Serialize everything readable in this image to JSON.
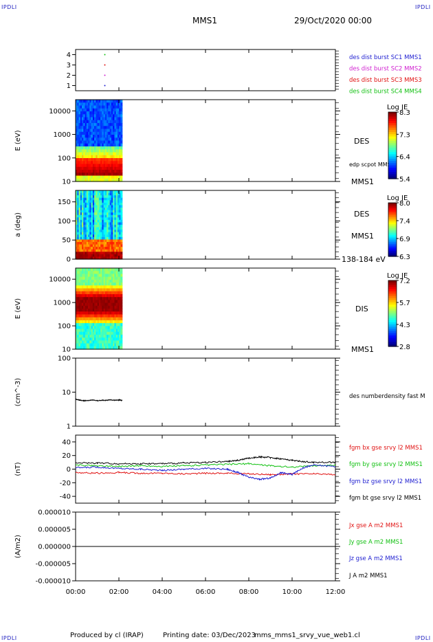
{
  "header": {
    "corner_label": "IPDLI",
    "spacecraft": "MMS1",
    "datetime": "29/Oct/2020 00:00"
  },
  "footer": {
    "producer": "Produced by cl (IRAP)",
    "printing_date": "Printing date: 03/Dec/2023",
    "filename": "mms_mms1_srvy_vue_web1.cl"
  },
  "time_axis": {
    "range_hours": [
      0,
      12
    ],
    "tick_labels": [
      "00:00",
      "02:00",
      "04:00",
      "06:00",
      "08:00",
      "10:00",
      "12:00"
    ]
  },
  "chart_data": [
    {
      "type": "scatter",
      "id": "availability",
      "ylim": [
        0.5,
        4.5
      ],
      "y_ticks": [
        "1",
        "2",
        "3",
        "4"
      ],
      "data_end_hours": 1.35,
      "series": [
        {
          "name": "des dist burst SC1 MMS1",
          "color": "#1c1cd0",
          "y": 1
        },
        {
          "name": "des dist burst SC2 MMS2",
          "color": "#d020d0",
          "y": 2
        },
        {
          "name": "des dist burst SC3 MMS3",
          "color": "#e01010",
          "y": 3
        },
        {
          "name": "des dist burst SC4 MMS4",
          "color": "#10c010",
          "y": 4
        }
      ]
    },
    {
      "type": "heatmap",
      "id": "des-energy",
      "ylabel": "E (eV)",
      "scale": "log",
      "ylim": [
        10,
        30000
      ],
      "y_ticks": [
        "10",
        "100",
        "1000",
        "10000"
      ],
      "data_hours": [
        0,
        2.15
      ],
      "right_label": "DES",
      "right_sublabel": "edp scpot MMS1",
      "right_bottom": "MMS1",
      "colorbar": {
        "title": "Log JE",
        "ticks": [
          "8.3",
          "7.3",
          "6.4",
          "5.4"
        ]
      }
    },
    {
      "type": "heatmap",
      "id": "des-pitch",
      "ylabel": "a (deg)",
      "ylim": [
        0,
        180
      ],
      "y_ticks": [
        "0",
        "50",
        "100",
        "150"
      ],
      "data_hours": [
        0,
        2.15
      ],
      "right_label": "DES",
      "right_sublabel": "MMS1",
      "right_bottom": "138-184 eV",
      "colorbar": {
        "title": "Log JE",
        "ticks": [
          "8.0",
          "7.4",
          "6.9",
          "6.3"
        ]
      }
    },
    {
      "type": "heatmap",
      "id": "dis-energy",
      "ylabel": "E (eV)",
      "scale": "log",
      "ylim": [
        10,
        30000
      ],
      "y_ticks": [
        "10",
        "100",
        "1000",
        "10000"
      ],
      "data_hours": [
        0,
        2.15
      ],
      "right_label": "DIS",
      "right_bottom": "MMS1",
      "colorbar": {
        "title": "Log JE",
        "ticks": [
          "7.2",
          "5.7",
          "4.3",
          "2.8"
        ]
      }
    },
    {
      "type": "line",
      "id": "density",
      "ylabel": "(cm^-3)",
      "scale": "log",
      "ylim": [
        1,
        100
      ],
      "y_ticks": [
        "1",
        "10",
        "100"
      ],
      "series": [
        {
          "name": "des numberdensity fast M",
          "color": "#000000",
          "x": [
            0,
            0.2,
            0.4,
            0.6,
            0.8,
            1.0,
            1.2,
            1.4,
            1.6,
            1.8,
            2.0,
            2.15
          ],
          "y": [
            6.2,
            5.8,
            5.6,
            5.7,
            5.9,
            5.6,
            5.8,
            5.7,
            6.0,
            5.8,
            5.9,
            5.7
          ]
        }
      ]
    },
    {
      "type": "line",
      "id": "fgm",
      "ylabel": "(nT)",
      "ylim": [
        -50,
        50
      ],
      "y_ticks": [
        "-40",
        "-20",
        "0",
        "20",
        "40"
      ],
      "series": [
        {
          "name": "fgm bx gse srvy l2 MMS1",
          "color": "#e01010",
          "x": [
            0,
            1,
            2,
            3,
            4,
            5,
            6,
            7,
            8,
            9,
            10,
            11,
            12
          ],
          "y": [
            -5,
            -6,
            -5,
            -6,
            -6,
            -7,
            -6,
            -6,
            -7,
            -8,
            -7,
            -7,
            -8
          ]
        },
        {
          "name": "fgm by gse srvy l2 MMS1",
          "color": "#10c010",
          "x": [
            0,
            1,
            2,
            3,
            4,
            5,
            6,
            7,
            8,
            9,
            10,
            11,
            12
          ],
          "y": [
            6,
            5,
            4,
            5,
            4,
            5,
            6,
            7,
            8,
            5,
            3,
            5,
            6
          ]
        },
        {
          "name": "fgm bz gse srvy l2 MMS1",
          "color": "#1c1cd0",
          "x": [
            0,
            1,
            2,
            3,
            4,
            5,
            6,
            7,
            7.5,
            8,
            8.5,
            9,
            9.5,
            10,
            10.5,
            11,
            12
          ],
          "y": [
            2,
            3,
            1,
            0,
            -2,
            0,
            1,
            0,
            -5,
            -12,
            -15,
            -13,
            -5,
            -8,
            2,
            6,
            4
          ]
        },
        {
          "name": "fgm bt gse srvy l2 MMS1",
          "color": "#000000",
          "x": [
            0,
            1,
            2,
            3,
            4,
            5,
            6,
            7,
            7.5,
            8,
            8.5,
            9,
            9.5,
            10,
            10.5,
            11,
            12
          ],
          "y": [
            9,
            9,
            8,
            8,
            8,
            9,
            10,
            11,
            13,
            16,
            18,
            17,
            15,
            13,
            11,
            10,
            10
          ]
        }
      ]
    },
    {
      "type": "line",
      "id": "current",
      "ylabel": "(A/m2)",
      "ylim": [
        -1e-05,
        1e-05
      ],
      "y_ticks": [
        "-0.000010",
        "-0.000005",
        "0.000000",
        "0.000005",
        "0.000010"
      ],
      "series": [
        {
          "name": "Jx gse A m2 MMS1",
          "color": "#e01010",
          "x": [
            0,
            12
          ],
          "y": [
            0,
            0
          ]
        },
        {
          "name": "Jy gse A m2 MMS1",
          "color": "#10c010",
          "x": [
            0,
            12
          ],
          "y": [
            0,
            0
          ]
        },
        {
          "name": "Jz gse A m2 MMS1",
          "color": "#1c1cd0",
          "x": [
            0,
            12
          ],
          "y": [
            0,
            0
          ]
        },
        {
          "name": "J A m2 MMS1",
          "color": "#000000",
          "x": [
            0,
            12
          ],
          "y": [
            0,
            0
          ]
        }
      ]
    }
  ]
}
